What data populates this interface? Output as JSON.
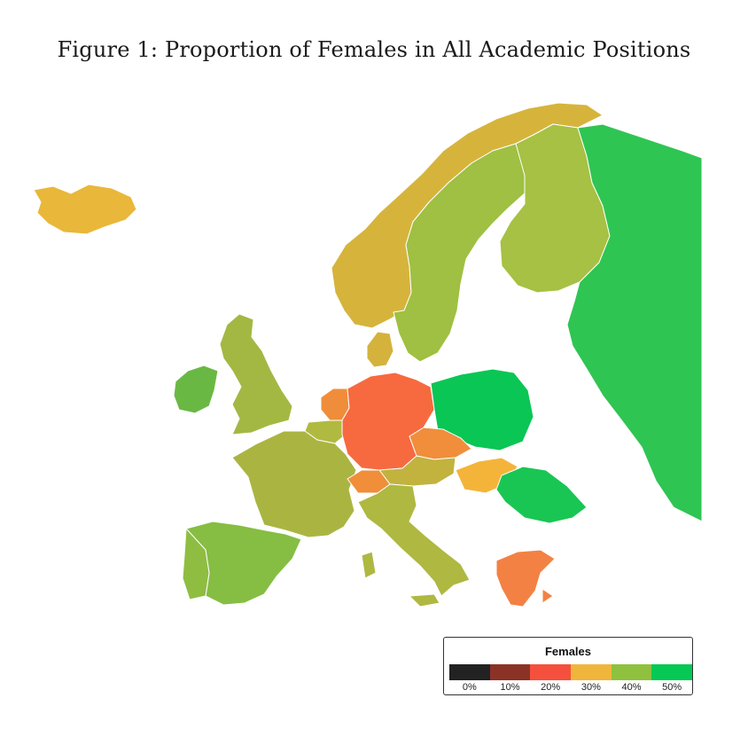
{
  "title": "Figure 1: Proportion of Females in All Academic Positions",
  "legend": {
    "title": "Females",
    "colors": [
      "#222222",
      "#8b3226",
      "#f5503d",
      "#f0b63b",
      "#8fc13e",
      "#06c854"
    ],
    "ticks": [
      "0%",
      "10%",
      "20%",
      "30%",
      "40%",
      "50%"
    ]
  },
  "regions": [
    {
      "name": "iceland",
      "color": "#e9b73a"
    },
    {
      "name": "norway",
      "color": "#d6b43c"
    },
    {
      "name": "sweden",
      "color": "#9fc042"
    },
    {
      "name": "finland",
      "color": "#a6c143"
    },
    {
      "name": "russia",
      "color": "#2fc552"
    },
    {
      "name": "ireland",
      "color": "#6ab844"
    },
    {
      "name": "united-kingdom",
      "color": "#a3b843"
    },
    {
      "name": "denmark",
      "color": "#d4b23c"
    },
    {
      "name": "netherlands",
      "color": "#f08d3a"
    },
    {
      "name": "belgium",
      "color": "#b0ba40"
    },
    {
      "name": "germany",
      "color": "#f76a3f"
    },
    {
      "name": "poland",
      "color": "#0ac655"
    },
    {
      "name": "czechia",
      "color": "#f08e3c"
    },
    {
      "name": "austria",
      "color": "#c2b33f"
    },
    {
      "name": "switzerland",
      "color": "#f08e3a"
    },
    {
      "name": "hungary",
      "color": "#f4b43a"
    },
    {
      "name": "romania",
      "color": "#19c653"
    },
    {
      "name": "france",
      "color": "#aab541"
    },
    {
      "name": "italy",
      "color": "#afb841"
    },
    {
      "name": "spain",
      "color": "#86bd43"
    },
    {
      "name": "portugal",
      "color": "#8fbd42"
    },
    {
      "name": "greece",
      "color": "#f38143"
    }
  ]
}
